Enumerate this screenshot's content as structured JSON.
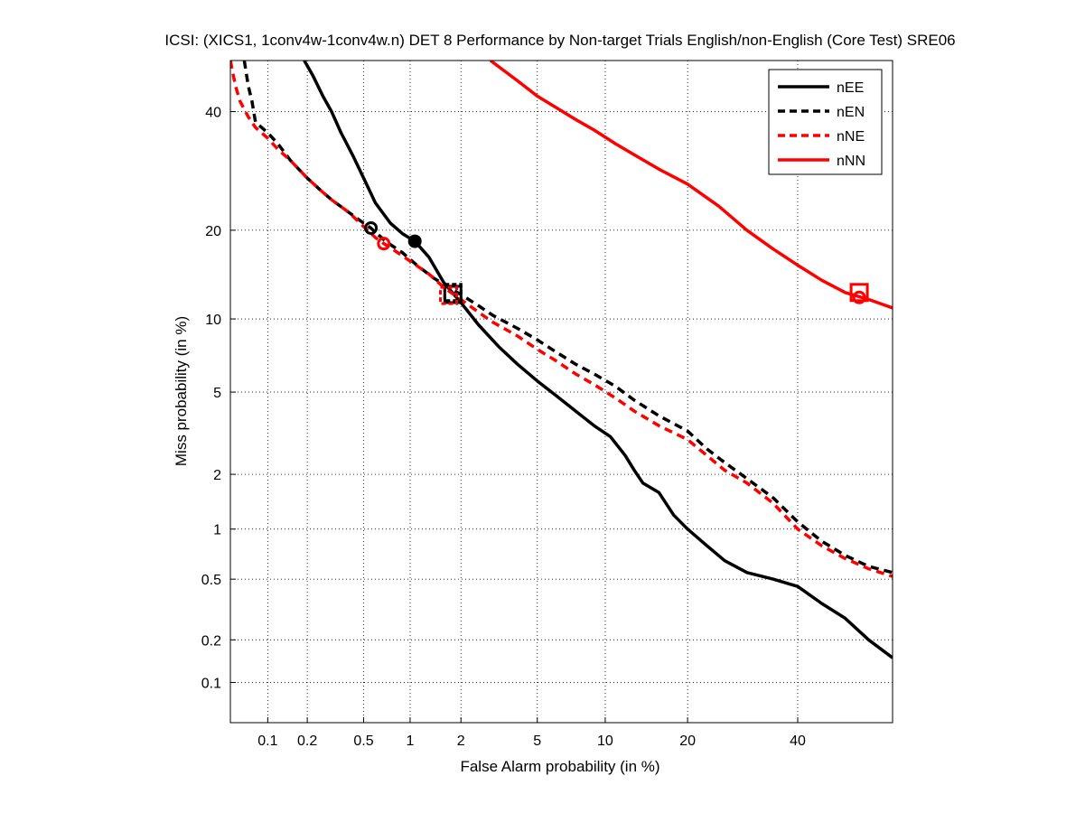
{
  "chart_data": {
    "type": "line",
    "title": "ICSI: (XICS1, 1conv4w-1conv4w.n) DET 8 Performance by Non-target Trials English/non-English (Core Test) SRE06",
    "xlabel": "False Alarm probability (in %)",
    "ylabel": "Miss probability (in %)",
    "x_scale": "probit",
    "y_scale": "probit",
    "xlim": [
      0.05,
      60
    ],
    "ylim": [
      0.05,
      50
    ],
    "x_ticks": [
      0.1,
      0.2,
      0.5,
      1,
      2,
      5,
      10,
      20,
      40
    ],
    "x_tick_labels": [
      "0.1",
      "0.2",
      "0.5",
      "1",
      "2",
      "5",
      "10",
      "20",
      "40"
    ],
    "y_ticks": [
      0.1,
      0.2,
      0.5,
      1,
      2,
      5,
      10,
      20,
      40
    ],
    "y_tick_labels": [
      "0.1",
      "0.2",
      "0.5",
      "1",
      "2",
      "5",
      "10",
      "20",
      "40"
    ],
    "grid": true,
    "legend_position": "top-right",
    "series": [
      {
        "name": "nEE",
        "color": "#000000",
        "dash": "solid",
        "points": [
          [
            0.19,
            50
          ],
          [
            0.22,
            47
          ],
          [
            0.26,
            43
          ],
          [
            0.3,
            40
          ],
          [
            0.35,
            36
          ],
          [
            0.42,
            32
          ],
          [
            0.5,
            28
          ],
          [
            0.6,
            24
          ],
          [
            0.75,
            21
          ],
          [
            0.9,
            19.5
          ],
          [
            1.07,
            18.5
          ],
          [
            1.3,
            16.5
          ],
          [
            1.6,
            13.5
          ],
          [
            2.0,
            11.5
          ],
          [
            2.5,
            9.5
          ],
          [
            3.2,
            7.8
          ],
          [
            4.0,
            6.6
          ],
          [
            5.0,
            5.6
          ],
          [
            6.0,
            4.9
          ],
          [
            7.5,
            4.1
          ],
          [
            9.0,
            3.5
          ],
          [
            10.5,
            3.1
          ],
          [
            12,
            2.5
          ],
          [
            13,
            2.1
          ],
          [
            14,
            1.8
          ],
          [
            16,
            1.6
          ],
          [
            18,
            1.2
          ],
          [
            20,
            1.0
          ],
          [
            23,
            0.8
          ],
          [
            26,
            0.65
          ],
          [
            30,
            0.55
          ],
          [
            35,
            0.5
          ],
          [
            40,
            0.45
          ],
          [
            45,
            0.35
          ],
          [
            50,
            0.28
          ],
          [
            55,
            0.2
          ],
          [
            60,
            0.15
          ]
        ],
        "operating_point_min_dcf": [
          1.07,
          18.5
        ],
        "operating_point_actual": [
          1.8,
          12.3
        ]
      },
      {
        "name": "nEN",
        "color": "#000000",
        "dash": "dashed",
        "points": [
          [
            0.065,
            50
          ],
          [
            0.07,
            45
          ],
          [
            0.075,
            42
          ],
          [
            0.08,
            38
          ],
          [
            0.1,
            36
          ],
          [
            0.12,
            34
          ],
          [
            0.15,
            31
          ],
          [
            0.2,
            28
          ],
          [
            0.25,
            26
          ],
          [
            0.3,
            24.5
          ],
          [
            0.4,
            22.5
          ],
          [
            0.5,
            21
          ],
          [
            0.56,
            20.3
          ],
          [
            0.7,
            18.5
          ],
          [
            0.9,
            17
          ],
          [
            1.1,
            15.5
          ],
          [
            1.4,
            14
          ],
          [
            1.7,
            13
          ],
          [
            2.0,
            12.3
          ],
          [
            2.5,
            11.2
          ],
          [
            3.0,
            10.3
          ],
          [
            4.0,
            9.2
          ],
          [
            5.0,
            8.3
          ],
          [
            6.0,
            7.5
          ],
          [
            7.5,
            6.6
          ],
          [
            9.0,
            6.0
          ],
          [
            11,
            5.3
          ],
          [
            13,
            4.6
          ],
          [
            16,
            3.9
          ],
          [
            20,
            3.3
          ],
          [
            23,
            2.7
          ],
          [
            26,
            2.3
          ],
          [
            30,
            1.9
          ],
          [
            35,
            1.5
          ],
          [
            40,
            1.1
          ],
          [
            45,
            0.85
          ],
          [
            50,
            0.7
          ],
          [
            55,
            0.6
          ],
          [
            60,
            0.55
          ]
        ],
        "operating_point_min_dcf": [
          0.56,
          20.3
        ],
        "operating_point_actual": [
          1.8,
          12.5
        ]
      },
      {
        "name": "nNE",
        "color": "#ff0000",
        "dash": "dashed",
        "points": [
          [
            0.05,
            50
          ],
          [
            0.055,
            45
          ],
          [
            0.06,
            42
          ],
          [
            0.07,
            39
          ],
          [
            0.08,
            37
          ],
          [
            0.1,
            35
          ],
          [
            0.12,
            33
          ],
          [
            0.15,
            31
          ],
          [
            0.2,
            28
          ],
          [
            0.25,
            26
          ],
          [
            0.3,
            24.5
          ],
          [
            0.4,
            22.5
          ],
          [
            0.5,
            20.5
          ],
          [
            0.6,
            19
          ],
          [
            0.68,
            18.2
          ],
          [
            0.8,
            17.3
          ],
          [
            1.0,
            16
          ],
          [
            1.3,
            14.5
          ],
          [
            1.6,
            13
          ],
          [
            2.0,
            11.8
          ],
          [
            2.5,
            10.6
          ],
          [
            3.0,
            9.7
          ],
          [
            4.0,
            8.6
          ],
          [
            5.0,
            7.6
          ],
          [
            6.0,
            6.9
          ],
          [
            7.5,
            6.0
          ],
          [
            9.0,
            5.4
          ],
          [
            11,
            4.7
          ],
          [
            13,
            4.1
          ],
          [
            16,
            3.5
          ],
          [
            20,
            3.0
          ],
          [
            23,
            2.5
          ],
          [
            26,
            2.1
          ],
          [
            30,
            1.8
          ],
          [
            35,
            1.4
          ],
          [
            40,
            1.0
          ],
          [
            45,
            0.8
          ],
          [
            50,
            0.67
          ],
          [
            55,
            0.58
          ],
          [
            60,
            0.52
          ]
        ],
        "operating_point_min_dcf": [
          0.68,
          18.2
        ],
        "operating_point_actual": [
          1.7,
          12.2
        ]
      },
      {
        "name": "nNN",
        "color": "#ff0000",
        "dash": "solid",
        "points": [
          [
            2.9,
            50
          ],
          [
            4,
            46
          ],
          [
            5,
            43
          ],
          [
            6,
            41
          ],
          [
            7.5,
            38.5
          ],
          [
            9,
            36.5
          ],
          [
            11,
            34
          ],
          [
            13,
            32
          ],
          [
            16,
            29.5
          ],
          [
            20,
            27
          ],
          [
            25,
            23.5
          ],
          [
            30,
            20
          ],
          [
            35,
            17.5
          ],
          [
            40,
            15.5
          ],
          [
            45,
            13.8
          ],
          [
            50,
            12.5
          ],
          [
            55,
            11.8
          ],
          [
            60,
            11
          ]
        ],
        "operating_point_min_dcf": [
          53,
          12.0
        ],
        "operating_point_actual": [
          53,
          12.5
        ]
      }
    ]
  }
}
